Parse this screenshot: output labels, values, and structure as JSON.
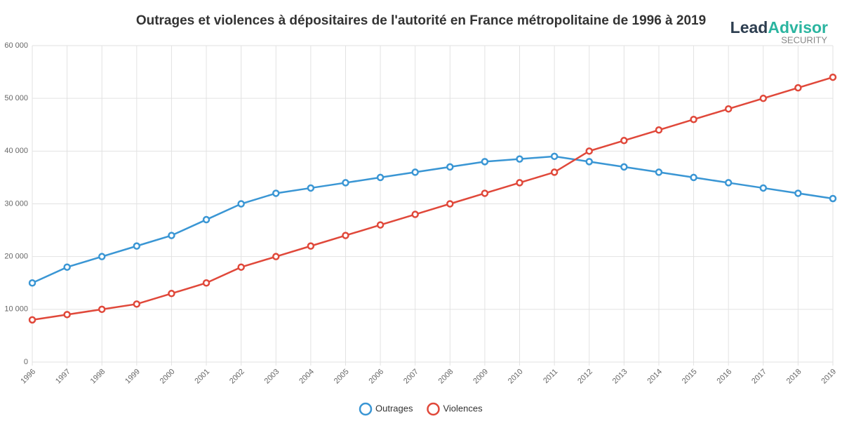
{
  "chart_data": {
    "type": "line",
    "title": "Outrages et violences à dépositaires de l'autorité en France métropolitaine de 1996 à 2019",
    "categories": [
      "1996",
      "1997",
      "1998",
      "1999",
      "2000",
      "2001",
      "2002",
      "2003",
      "2004",
      "2005",
      "2006",
      "2007",
      "2008",
      "2009",
      "2010",
      "2011",
      "2012",
      "2013",
      "2014",
      "2015",
      "2016",
      "2017",
      "2018",
      "2019"
    ],
    "series": [
      {
        "name": "Outrages",
        "color": "#3a96d4",
        "values": [
          15000,
          18000,
          20000,
          22000,
          24000,
          27000,
          30000,
          32000,
          33000,
          34000,
          35000,
          36000,
          37000,
          38000,
          38500,
          39000,
          38000,
          37000,
          36000,
          35000,
          34000,
          33000,
          32000,
          31000
        ]
      },
      {
        "name": "Violences",
        "color": "#e0483a",
        "values": [
          8000,
          9000,
          10000,
          11000,
          13000,
          15000,
          18000,
          20000,
          22000,
          24000,
          26000,
          28000,
          30000,
          32000,
          34000,
          36000,
          40000,
          42000,
          44000,
          46000,
          48000,
          50000,
          52000,
          54000
        ]
      }
    ],
    "ylim": [
      0,
      60000
    ],
    "yticks": [
      0,
      {
        "value": 10000,
        "label": "10 000"
      },
      {
        "value": 20000,
        "label": "20 000"
      },
      {
        "value": 30000,
        "label": "30 000"
      },
      {
        "value": 40000,
        "label": "40 000"
      },
      {
        "value": 50000,
        "label": "50 000"
      },
      {
        "value": 60000,
        "label": "60 000"
      }
    ],
    "grid": true,
    "legend": "bottom"
  },
  "logo": {
    "lead": "Lead",
    "advisor": "Advisor",
    "tagline": "SECURITY"
  }
}
